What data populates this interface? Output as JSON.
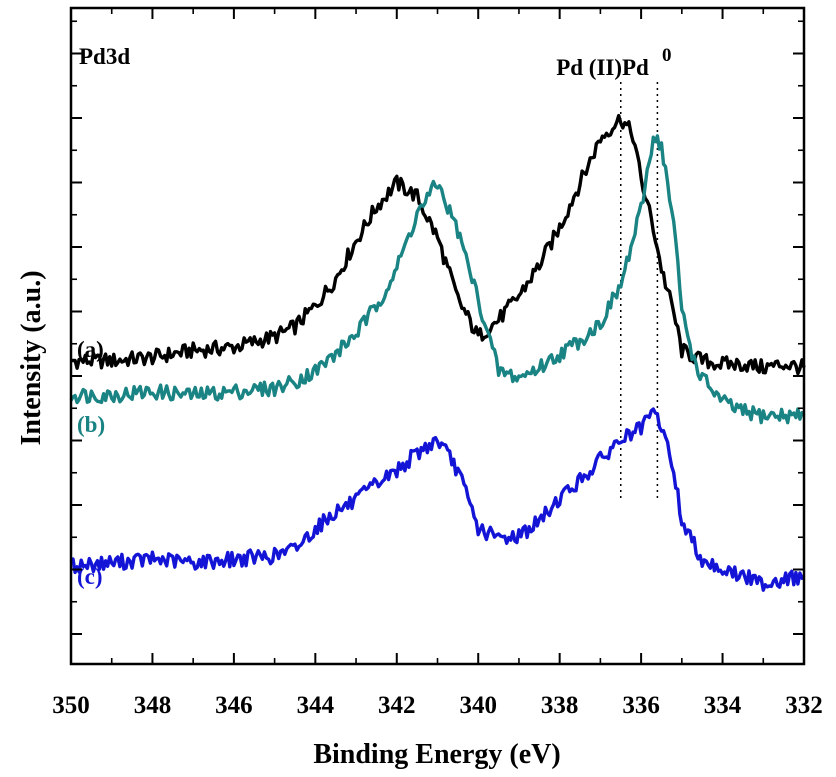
{
  "chart_data": {
    "type": "line",
    "title": "",
    "panel_label": "Pd3d",
    "xlabel": "Binding Energy (eV)",
    "ylabel": "Intensity (a.u.)",
    "xlim": [
      350,
      332
    ],
    "x_reversed": true,
    "y_tick_labels_shown": false,
    "x_ticks": [
      350,
      348,
      346,
      344,
      342,
      340,
      338,
      336,
      334,
      332
    ],
    "x_tick_labels": [
      "350",
      "348",
      "346",
      "344",
      "342",
      "340",
      "338",
      "336",
      "334",
      "332"
    ],
    "grid": false,
    "legend": "curve labels at left",
    "annotations": [
      {
        "text": "Pd (II)",
        "x": 336.5
      },
      {
        "text": "Pd",
        "superscript": "0",
        "x": 335.6
      }
    ],
    "series": [
      {
        "name": "(a)",
        "color": "#000000",
        "x": [
          350,
          349,
          348,
          347,
          346,
          345,
          344.5,
          344,
          343.5,
          343,
          342.5,
          342,
          341.5,
          341,
          340.5,
          340,
          339.5,
          339,
          338.5,
          338,
          337.5,
          337,
          336.5,
          336.2,
          336,
          335.7,
          335.5,
          335.2,
          335,
          334.5,
          334,
          333.5,
          333,
          332.5,
          332
        ],
        "y": [
          0.1,
          0.1,
          0.11,
          0.13,
          0.14,
          0.17,
          0.2,
          0.26,
          0.34,
          0.45,
          0.55,
          0.62,
          0.58,
          0.46,
          0.28,
          0.17,
          0.22,
          0.29,
          0.38,
          0.49,
          0.62,
          0.75,
          0.81,
          0.76,
          0.63,
          0.49,
          0.37,
          0.24,
          0.13,
          0.1,
          0.09,
          0.09,
          0.08,
          0.09,
          0.08
        ]
      },
      {
        "name": "(b)",
        "color": "#1a8383",
        "x": [
          350,
          349,
          348,
          347,
          346,
          345,
          344.5,
          344,
          343.5,
          343,
          342.5,
          342,
          341.5,
          341,
          340.5,
          340,
          339.5,
          339,
          338.5,
          338,
          337.5,
          337,
          336.5,
          336,
          335.7,
          335.5,
          335.2,
          335,
          334.7,
          334.5,
          334,
          333.5,
          333,
          332.5,
          332
        ],
        "y": [
          0.0,
          0.0,
          0.01,
          0.0,
          0.01,
          0.02,
          0.04,
          0.07,
          0.12,
          0.18,
          0.26,
          0.37,
          0.53,
          0.62,
          0.48,
          0.28,
          0.07,
          0.05,
          0.08,
          0.12,
          0.16,
          0.21,
          0.32,
          0.54,
          0.76,
          0.73,
          0.5,
          0.25,
          0.1,
          0.05,
          -0.02,
          -0.05,
          -0.06,
          -0.06,
          -0.06
        ]
      },
      {
        "name": "(c)",
        "color": "#1414d7",
        "x": [
          350,
          349,
          348,
          347,
          346,
          345,
          344.5,
          344,
          343.5,
          343,
          342.5,
          342,
          341.5,
          341,
          340.5,
          340,
          339.5,
          339,
          338.5,
          338,
          337.5,
          337,
          336.5,
          336,
          335.7,
          335.5,
          335.2,
          335,
          334.5,
          334,
          333.5,
          333,
          332.5,
          332
        ],
        "y": [
          -0.5,
          -0.49,
          -0.48,
          -0.49,
          -0.48,
          -0.47,
          -0.45,
          -0.39,
          -0.34,
          -0.31,
          -0.26,
          -0.22,
          -0.17,
          -0.13,
          -0.22,
          -0.39,
          -0.42,
          -0.41,
          -0.37,
          -0.3,
          -0.25,
          -0.19,
          -0.13,
          -0.1,
          -0.05,
          -0.09,
          -0.22,
          -0.37,
          -0.48,
          -0.51,
          -0.53,
          -0.55,
          -0.54,
          -0.53
        ]
      }
    ]
  }
}
